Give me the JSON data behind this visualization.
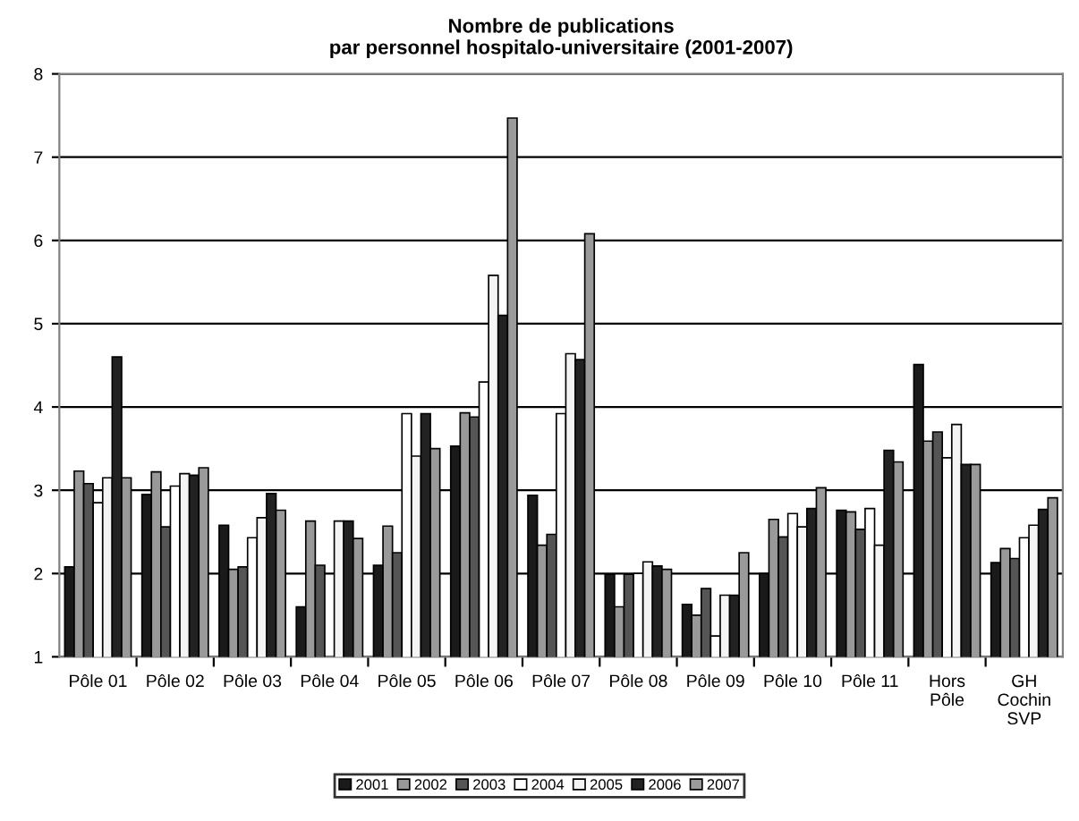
{
  "chart_data": {
    "type": "bar",
    "title": "Nombre de publications\npar personnel hospitalo-universitaire (2001-2007)",
    "categories": [
      "Pôle 01",
      "Pôle 02",
      "Pôle 03",
      "Pôle 04",
      "Pôle 05",
      "Pôle 06",
      "Pôle 07",
      "Pôle 08",
      "Pôle 09",
      "Pôle 10",
      "Pôle 11",
      "Hors\nPôle",
      "GH\nCochin\nSVP"
    ],
    "series": [
      {
        "name": "2001",
        "color": "#1a1a1a",
        "values": [
          2.08,
          2.95,
          2.58,
          1.6,
          2.1,
          3.53,
          2.94,
          1.99,
          1.63,
          2.0,
          2.76,
          4.51,
          2.13
        ]
      },
      {
        "name": "2002",
        "color": "#999999",
        "values": [
          3.23,
          3.22,
          2.05,
          2.63,
          2.57,
          3.93,
          2.34,
          1.6,
          1.5,
          2.65,
          2.74,
          3.59,
          2.3
        ]
      },
      {
        "name": "2003",
        "color": "#555555",
        "values": [
          3.08,
          2.56,
          2.08,
          2.1,
          2.25,
          3.88,
          2.47,
          1.99,
          1.82,
          2.44,
          2.53,
          3.7,
          2.18
        ]
      },
      {
        "name": "2004",
        "color": "#ffffff",
        "values": [
          2.85,
          3.05,
          2.43,
          null,
          3.92,
          4.3,
          3.92,
          2.0,
          1.25,
          2.72,
          2.78,
          3.39,
          2.43
        ]
      },
      {
        "name": "2005",
        "color": "#f4f4f4",
        "values": [
          3.15,
          3.2,
          2.67,
          2.63,
          3.41,
          5.58,
          4.64,
          2.14,
          1.74,
          2.56,
          2.34,
          3.79,
          2.58
        ]
      },
      {
        "name": "2006",
        "color": "#222222",
        "values": [
          4.6,
          3.18,
          2.96,
          2.63,
          3.92,
          5.1,
          4.57,
          2.09,
          1.74,
          2.78,
          3.48,
          3.31,
          2.77
        ]
      },
      {
        "name": "2007",
        "color": "#9a9a9a",
        "values": [
          3.15,
          3.27,
          2.76,
          2.42,
          3.5,
          7.47,
          6.08,
          2.05,
          2.25,
          3.03,
          3.34,
          3.31,
          2.91
        ]
      }
    ],
    "ylim": [
      1,
      8
    ],
    "yticks": [
      1,
      2,
      3,
      4,
      5,
      6,
      7,
      8
    ],
    "grid": "y",
    "legend": "bottom"
  }
}
